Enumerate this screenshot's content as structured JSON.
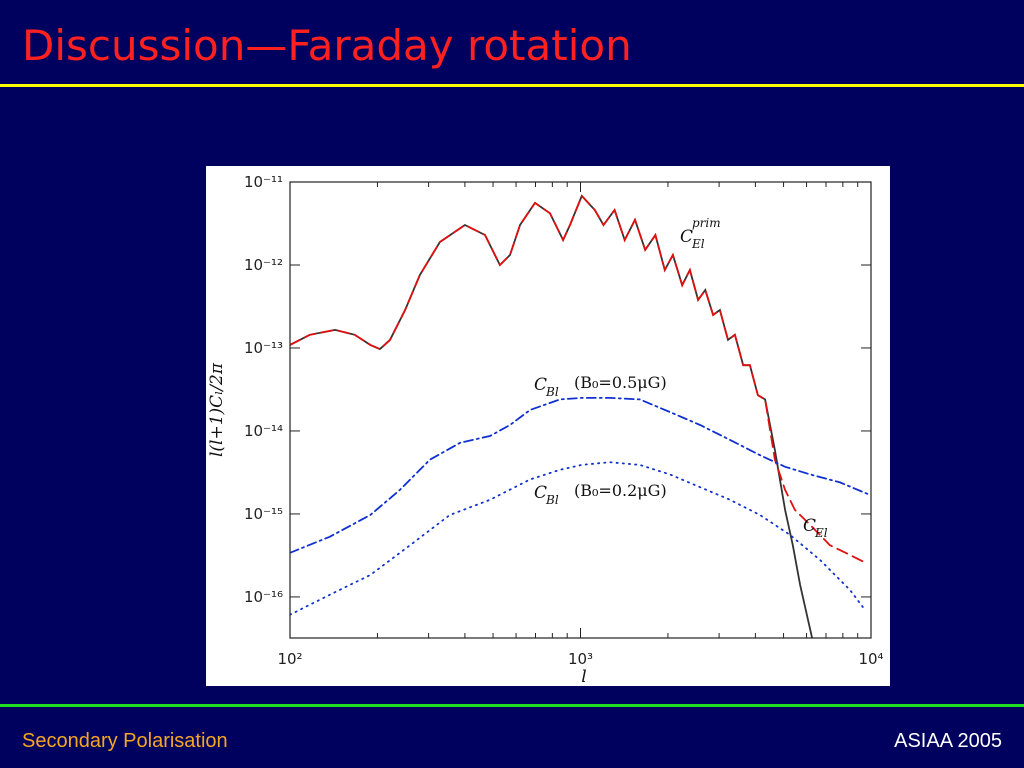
{
  "title": "Discussion—Faraday rotation",
  "footer_left": "Secondary Polarisation",
  "footer_right": "ASIAA 2005",
  "chart_data": {
    "type": "line",
    "x_label": "l",
    "y_label": "l(l+1)Cₗ/2π",
    "x_log": true,
    "y_log": true,
    "xlim": [
      100,
      10000
    ],
    "ylim": [
      3.2e-17,
      1e-11
    ],
    "xticks": [
      {
        "value": 100,
        "label": "10²"
      },
      {
        "value": 1000,
        "label": "10³"
      },
      {
        "value": 10000,
        "label": "10⁴"
      }
    ],
    "xminor_ticks": [
      200,
      300,
      400,
      500,
      600,
      700,
      800,
      900,
      2000,
      3000,
      4000,
      5000,
      6000,
      7000,
      8000,
      9000
    ],
    "yticks": [
      {
        "value": 1e-11,
        "label": "10⁻¹¹"
      },
      {
        "value": 1e-12,
        "label": "10⁻¹²"
      },
      {
        "value": 1e-13,
        "label": "10⁻¹³"
      },
      {
        "value": 1e-14,
        "label": "10⁻¹⁴"
      },
      {
        "value": 1e-15,
        "label": "10⁻¹⁵"
      },
      {
        "value": 1e-16,
        "label": "10⁻¹⁶"
      }
    ],
    "annotations": [
      {
        "base": "C",
        "sub": "El",
        "sup": "prim"
      },
      {
        "base": "C",
        "sub": "Bl",
        "text": "(B₀=0.5μG)"
      },
      {
        "base": "C",
        "sub": "Bl",
        "text": "(B₀=0.2μG)"
      },
      {
        "base": "C",
        "sub": "El"
      }
    ],
    "series": [
      {
        "color": "#333333",
        "dash": "solid",
        "x": [
          100,
          117,
          143,
          167,
          189,
          204,
          221,
          249,
          280,
          328,
          400,
          469,
          528,
          572,
          619,
          697,
          785,
          871,
          920,
          1010,
          1120,
          1200,
          1310,
          1420,
          1540,
          1670,
          1810,
          1950,
          2080,
          2240,
          2380,
          2540,
          2690,
          2860,
          3020,
          3220,
          3400,
          3630,
          3830,
          4080,
          4320,
          4670,
          5060,
          5380,
          5700,
          6070,
          6270
        ],
        "values": [
          1.09e-13,
          1.44e-13,
          1.65e-13,
          1.44e-13,
          1.09e-13,
          9.7e-14,
          1.25e-13,
          2.87e-13,
          7.6e-13,
          1.89e-12,
          3.03e-12,
          2.3e-12,
          1e-12,
          1.32e-12,
          3.03e-12,
          5.6e-12,
          4.2e-12,
          2e-12,
          3.03e-12,
          6.8e-12,
          4.6e-12,
          3.03e-12,
          4.6e-12,
          2e-12,
          3.5e-12,
          1.52e-12,
          2.3e-12,
          8.7e-13,
          1.32e-12,
          5.7e-13,
          8.7e-13,
          3.8e-13,
          5e-13,
          2.5e-13,
          2.87e-13,
          1.25e-13,
          1.44e-13,
          6.2e-14,
          6.2e-14,
          2.7e-14,
          2.4e-14,
          5.9e-15,
          1.12e-15,
          4.2e-16,
          1.4e-16,
          5.3e-17,
          3.2e-17
        ]
      },
      {
        "color": "#e01010",
        "dash": "dashed",
        "x": [
          100,
          117,
          143,
          167,
          189,
          204,
          221,
          249,
          280,
          328,
          400,
          469,
          528,
          572,
          619,
          697,
          785,
          871,
          920,
          1010,
          1120,
          1200,
          1310,
          1420,
          1540,
          1670,
          1810,
          1950,
          2080,
          2240,
          2380,
          2540,
          2690,
          2860,
          3020,
          3220,
          3400,
          3630,
          3830,
          4080,
          4320,
          4670,
          5060,
          5470,
          6170,
          7220,
          8470,
          9530
        ],
        "values": [
          1.09e-13,
          1.44e-13,
          1.65e-13,
          1.44e-13,
          1.09e-13,
          9.7e-14,
          1.25e-13,
          2.87e-13,
          7.6e-13,
          1.89e-12,
          3.03e-12,
          2.3e-12,
          1e-12,
          1.32e-12,
          3.03e-12,
          5.6e-12,
          4.2e-12,
          2e-12,
          3.03e-12,
          6.8e-12,
          4.6e-12,
          3.03e-12,
          4.6e-12,
          2e-12,
          3.5e-12,
          1.52e-12,
          2.3e-12,
          8.7e-13,
          1.32e-12,
          5.7e-13,
          8.7e-13,
          3.8e-13,
          5e-13,
          2.5e-13,
          2.87e-13,
          1.25e-13,
          1.44e-13,
          6.2e-14,
          6.2e-14,
          2.7e-14,
          2.4e-14,
          4.5e-15,
          1.95e-15,
          1.12e-15,
          7.4e-16,
          4.2e-16,
          3.2e-16,
          2.6e-16
        ]
      },
      {
        "color": "#1030d0",
        "dash": "dashdot",
        "x": [
          100,
          137,
          189,
          239,
          303,
          385,
          488,
          572,
          670,
          850,
          1010,
          1260,
          1600,
          2030,
          2580,
          3270,
          4150,
          5060,
          6170,
          7820,
          9930
        ],
        "values": [
          3.4e-16,
          5.3e-16,
          9.7e-16,
          1.95e-15,
          4.5e-15,
          7.2e-15,
          8.7e-15,
          1.18e-14,
          1.79e-14,
          2.4e-14,
          2.5e-14,
          2.5e-14,
          2.4e-14,
          1.69e-14,
          1.18e-14,
          7.8e-15,
          5.1e-15,
          3.7e-15,
          3e-15,
          2.4e-15,
          1.69e-15
        ]
      },
      {
        "color": "#1030d0",
        "dash": "dotted",
        "x": [
          100,
          137,
          189,
          259,
          355,
          488,
          670,
          850,
          1010,
          1260,
          1600,
          2030,
          2580,
          3270,
          4150,
          5260,
          6670,
          8470,
          9530
        ],
        "values": [
          6.1e-17,
          1.06e-16,
          1.84e-16,
          4.2e-16,
          9.7e-16,
          1.48e-15,
          2.6e-15,
          3.4e-15,
          3.9e-15,
          4.2e-15,
          3.9e-15,
          3e-15,
          2.1e-15,
          1.48e-15,
          9.7e-16,
          5.6e-16,
          2.8e-16,
          1.21e-16,
          7e-17
        ]
      }
    ]
  }
}
